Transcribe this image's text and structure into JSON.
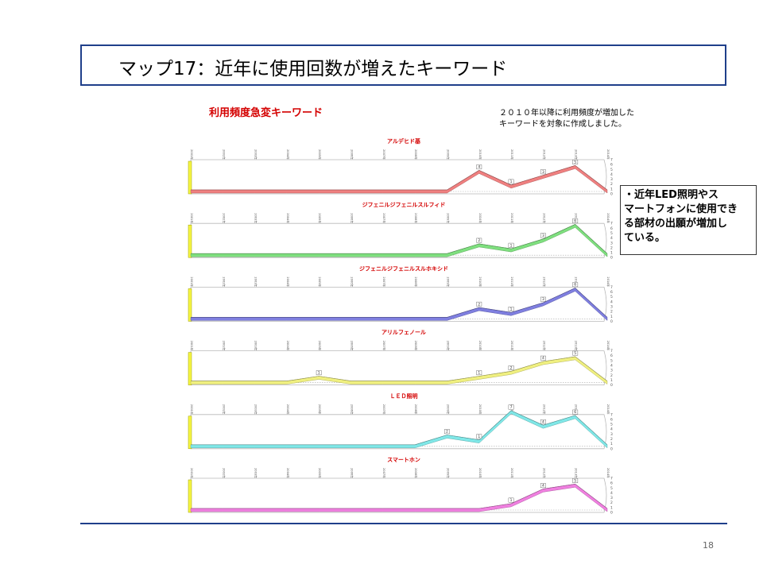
{
  "slide": {
    "title": "マップ17：近年に使用回数が増えたキーワード",
    "heading": "利用頻度急変キーワード",
    "note_lines": [
      "２０１０年以降に利用頻度が増加した",
      "キーワードを対象に作成しました。"
    ],
    "callout_lines": [
      "・近年LED照明やス",
      "マートフォンに使用でき",
      "る部材の出願が増加し",
      "ている。"
    ],
    "page_number": "18"
  },
  "chart_data": {
    "type": "area",
    "x": [
      "2001年",
      "2002年",
      "2003年",
      "2004年",
      "2005年",
      "2006年",
      "2007年",
      "2008年",
      "2009年",
      "2010年",
      "2011年",
      "2012年",
      "2013年",
      "2014年"
    ],
    "ylim": [
      0,
      7
    ],
    "yticks": [
      "7",
      "6",
      "5",
      "4",
      "3",
      "2",
      "1",
      "0"
    ],
    "series": [
      {
        "name": "アルデヒド基",
        "color": "#f08080",
        "values": [
          0,
          0,
          0,
          0,
          0,
          0,
          0,
          0,
          0,
          4,
          1,
          3,
          5,
          0
        ]
      },
      {
        "name": "ジフェニルジフェニルスルフィド",
        "color": "#7fe07f",
        "values": [
          0,
          0,
          0,
          0,
          0,
          0,
          0,
          0,
          0,
          2,
          1,
          3,
          6,
          0
        ]
      },
      {
        "name": "ジフェニルジフェニルスルホキシド",
        "color": "#7f7fe0",
        "values": [
          0,
          0,
          0,
          0,
          0,
          0,
          0,
          0,
          0,
          2,
          1,
          3,
          6,
          0
        ]
      },
      {
        "name": "アリルフェノール",
        "color": "#f0f080",
        "values": [
          0,
          0,
          0,
          0,
          1,
          0,
          0,
          0,
          0,
          1,
          2,
          4,
          5,
          0
        ]
      },
      {
        "name": "ＬＥＤ照明",
        "color": "#80e8e8",
        "values": [
          0,
          0,
          0,
          0,
          0,
          0,
          0,
          0,
          2,
          1,
          7,
          4,
          6,
          0
        ]
      },
      {
        "name": "スマートホン",
        "color": "#f080e0",
        "values": [
          0,
          0,
          0,
          0,
          0,
          0,
          0,
          0,
          0,
          0,
          1,
          4,
          5,
          0
        ]
      }
    ]
  }
}
